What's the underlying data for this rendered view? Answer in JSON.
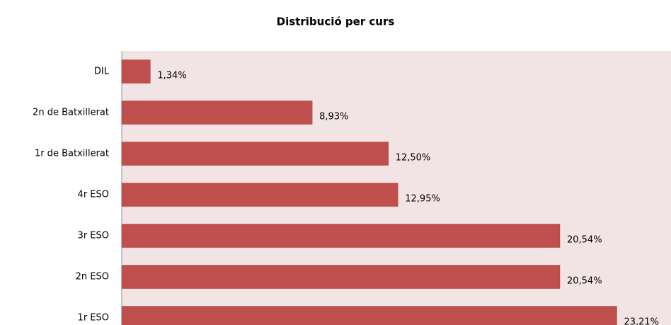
{
  "chart_data": {
    "type": "bar",
    "orientation": "horizontal",
    "title": "Distribució per curs",
    "categories": [
      "DIL",
      "2n de Batxillerat",
      "1r de Batxillerat",
      "4r ESO",
      "3r ESO",
      "2n ESO",
      "1r ESO"
    ],
    "values": [
      1.34,
      8.93,
      12.5,
      12.95,
      20.54,
      20.54,
      23.21
    ],
    "value_labels": [
      "1,34%",
      "8,93%",
      "12,50%",
      "12,95%",
      "20,54%",
      "20,54%",
      "23,21%"
    ],
    "color": "#c0504d",
    "background": "#f2e4e4",
    "xlim": [
      0,
      25.75
    ]
  }
}
